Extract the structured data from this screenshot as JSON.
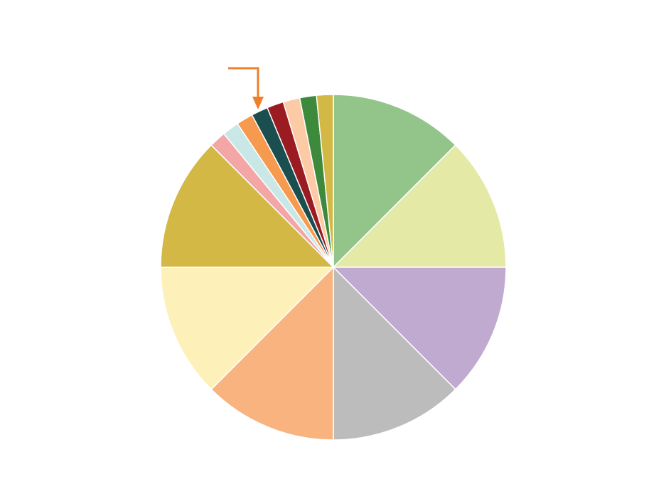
{
  "chart_data": {
    "type": "pie",
    "values": [
      8,
      8,
      8,
      8,
      8,
      8,
      8,
      1,
      1,
      1,
      1,
      1,
      1,
      1,
      1
    ],
    "colors": [
      "#93c58b",
      "#e4eaa6",
      "#c1aad0",
      "#bdbcbc",
      "#f8b37e",
      "#fdf1b9",
      "#d3b845",
      "#f4a6a6",
      "#c9e7e6",
      "#f59a4e",
      "#1b4e4f",
      "#9a1c22",
      "#fdcaa6",
      "#3e8a3c",
      "#d3b845"
    ]
  }
}
